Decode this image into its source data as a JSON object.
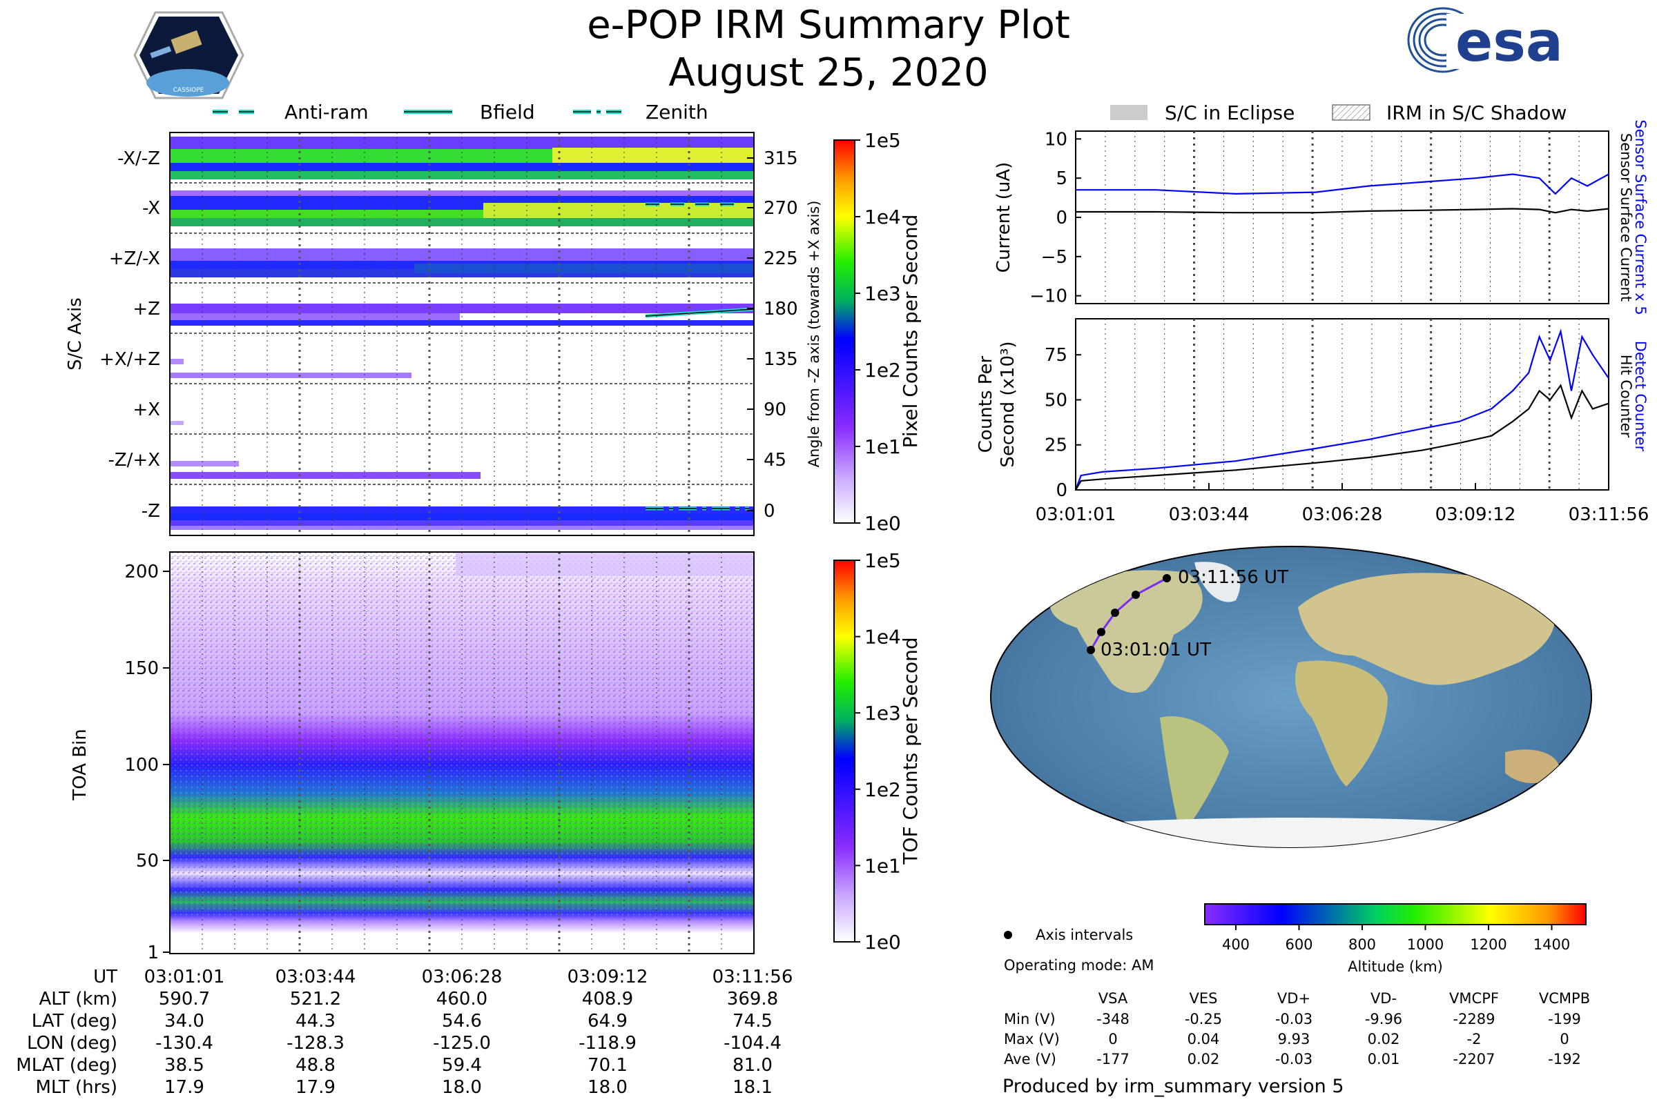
{
  "title": "e-POP IRM Summary Plot",
  "date": "August 25, 2020",
  "esa_logo_text": "esa",
  "cassiope_logo_text": "CASSIOPE",
  "legend_top": {
    "antiram": "Anti-ram",
    "bfield": "Bfield",
    "zenith": "Zenith",
    "eclipse": "S/C in Eclipse",
    "shadow": "IRM in S/C Shadow"
  },
  "colors": {
    "accent_blue": "#0000ff",
    "line_cyan": "#19e0c4",
    "eclipse_grey": "#cccccc",
    "ocean": "#5b8fb7",
    "land": "#cbc89a",
    "track": "#7b2cf0"
  },
  "time_ticks": [
    "03:01:01",
    "03:03:44",
    "03:06:28",
    "03:09:12",
    "03:11:56"
  ],
  "pixel_panel": {
    "ylabel": "S/C Axis",
    "right_label": "Angle from -Z axis (towards +X axis)",
    "axes": [
      "-X/-Z",
      "-X",
      "+Z/-X",
      "+Z",
      "+X/+Z",
      "+X",
      "-Z/+X",
      "-Z"
    ],
    "angles": [
      "315",
      "270",
      "225",
      "180",
      "135",
      "90",
      "45",
      "0"
    ],
    "colorbar_label": "Pixel Counts per Second",
    "colorbar_ticks": [
      "1e5",
      "1e4",
      "1e3",
      "1e2",
      "1e1",
      "1e0"
    ]
  },
  "tof_panel": {
    "ylabel": "TOA Bin",
    "yticks": [
      "200",
      "150",
      "100",
      "50",
      "1"
    ],
    "colorbar_label": "TOF Counts per Second",
    "colorbar_ticks": [
      "1e5",
      "1e4",
      "1e3",
      "1e2",
      "1e1",
      "1e0"
    ]
  },
  "chart_data": [
    {
      "type": "line",
      "title": "Current",
      "ylabel": "Current (uA)",
      "ylim": [
        -11,
        11
      ],
      "yticks": [
        "10",
        "5",
        "0",
        "−5",
        "−10"
      ],
      "right_labels": [
        "Sensor Surface Current x 5",
        "Sensor Surface Current"
      ],
      "x": [
        0,
        0.15,
        0.3,
        0.45,
        0.55,
        0.65,
        0.75,
        0.82,
        0.87,
        0.9,
        0.93,
        0.96,
        1.0
      ],
      "series": [
        {
          "name": "Sensor Surface Current x 5",
          "color": "#0000ff",
          "values": [
            3.5,
            3.5,
            3.0,
            3.2,
            4.0,
            4.5,
            5.0,
            5.5,
            5.0,
            3.0,
            5.0,
            4.0,
            5.5
          ]
        },
        {
          "name": "Sensor Surface Current",
          "color": "#000000",
          "values": [
            0.7,
            0.7,
            0.6,
            0.6,
            0.8,
            0.9,
            1.0,
            1.1,
            1.0,
            0.6,
            1.0,
            0.8,
            1.1
          ]
        }
      ]
    },
    {
      "type": "line",
      "title": "Counts",
      "ylabel_1": "Counts Per",
      "ylabel_2": "Second (x10³)",
      "ylim": [
        0,
        95
      ],
      "yticks": [
        "75",
        "50",
        "25",
        "0"
      ],
      "right_labels": [
        "Detect Counter",
        "Hit Counter"
      ],
      "xticks": [
        "03:01:01",
        "03:03:44",
        "03:06:28",
        "03:09:12",
        "03:11:56"
      ],
      "x": [
        0,
        0.01,
        0.05,
        0.15,
        0.3,
        0.45,
        0.55,
        0.65,
        0.72,
        0.78,
        0.82,
        0.85,
        0.87,
        0.89,
        0.91,
        0.93,
        0.95,
        0.97,
        1.0
      ],
      "series": [
        {
          "name": "Detect Counter",
          "color": "#0000ff",
          "values": [
            0,
            8,
            10,
            12,
            16,
            23,
            28,
            34,
            38,
            45,
            55,
            65,
            85,
            72,
            88,
            55,
            85,
            75,
            62
          ]
        },
        {
          "name": "Hit Counter",
          "color": "#000000",
          "values": [
            0,
            5,
            6,
            8,
            11,
            15,
            18,
            22,
            26,
            30,
            38,
            45,
            55,
            50,
            58,
            40,
            55,
            45,
            48
          ]
        }
      ]
    }
  ],
  "map": {
    "start_label": "03:01:01 UT",
    "end_label": "03:11:56 UT",
    "axis_intervals_label": "Axis intervals",
    "operating_mode": "Operating mode: AM",
    "altitude_label": "Altitude (km)",
    "altitude_ticks": [
      "400",
      "600",
      "800",
      "1000",
      "1200",
      "1400"
    ]
  },
  "ephemeris": {
    "rows": [
      {
        "label": "UT",
        "values": [
          "03:01:01",
          "03:03:44",
          "03:06:28",
          "03:09:12",
          "03:11:56"
        ]
      },
      {
        "label": "ALT (km)",
        "values": [
          "590.7",
          "521.2",
          "460.0",
          "408.9",
          "369.8"
        ]
      },
      {
        "label": "LAT (deg)",
        "values": [
          "34.0",
          "44.3",
          "54.6",
          "64.9",
          "74.5"
        ]
      },
      {
        "label": "LON (deg)",
        "values": [
          "-130.4",
          "-128.3",
          "-125.0",
          "-118.9",
          "-104.4"
        ]
      },
      {
        "label": "MLAT (deg)",
        "values": [
          "38.5",
          "48.8",
          "59.4",
          "70.1",
          "81.0"
        ]
      },
      {
        "label": "MLT (hrs)",
        "values": [
          "17.9",
          "17.9",
          "18.0",
          "18.0",
          "18.1"
        ]
      }
    ]
  },
  "voltages": {
    "headers": [
      "VSA",
      "VES",
      "VD+",
      "VD-",
      "VMCPF",
      "VCMPB"
    ],
    "rows": [
      {
        "label": "Min (V)",
        "values": [
          "-348",
          "-0.25",
          "-0.03",
          "-9.96",
          "-2289",
          "-199"
        ]
      },
      {
        "label": "Max (V)",
        "values": [
          "0",
          "0.04",
          "9.93",
          "0.02",
          "-2",
          "0"
        ]
      },
      {
        "label": "Ave (V)",
        "values": [
          "-177",
          "0.02",
          "-0.03",
          "0.01",
          "-2207",
          "-192"
        ]
      }
    ]
  },
  "footer": "Produced by irm_summary version 5"
}
